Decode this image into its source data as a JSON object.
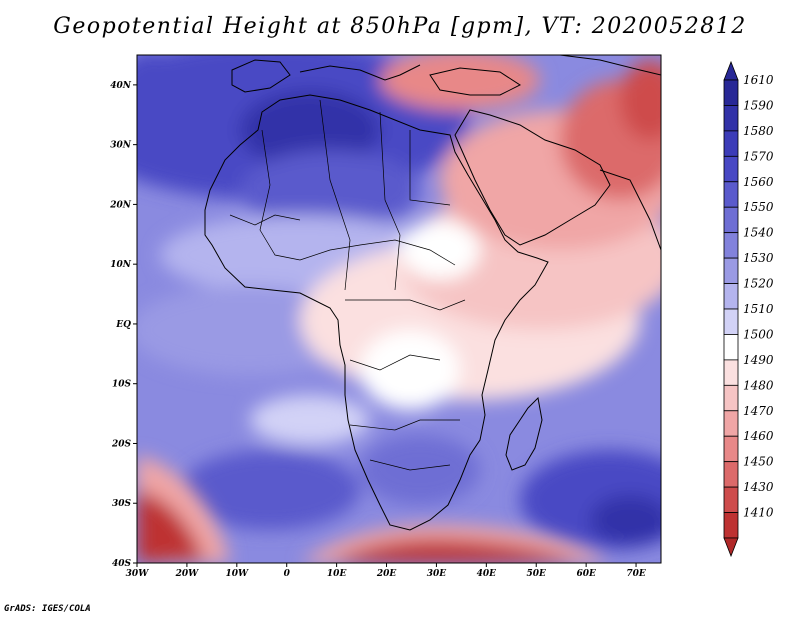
{
  "title": "Geopotential Height at 850hPa [gpm], VT: 2020052812",
  "footer": "GrADS: IGES/COLA",
  "map": {
    "lon_range": [
      -30,
      75
    ],
    "lat_range": [
      -40,
      45
    ],
    "lon_ticks": [
      {
        "value": -30,
        "label": "30W"
      },
      {
        "value": -20,
        "label": "20W"
      },
      {
        "value": -10,
        "label": "10W"
      },
      {
        "value": 0,
        "label": "0"
      },
      {
        "value": 10,
        "label": "10E"
      },
      {
        "value": 20,
        "label": "20E"
      },
      {
        "value": 30,
        "label": "30E"
      },
      {
        "value": 40,
        "label": "40E"
      },
      {
        "value": 50,
        "label": "50E"
      },
      {
        "value": 60,
        "label": "60E"
      },
      {
        "value": 70,
        "label": "70E"
      }
    ],
    "lat_ticks": [
      {
        "value": 40,
        "label": "40N"
      },
      {
        "value": 30,
        "label": "30N"
      },
      {
        "value": 20,
        "label": "20N"
      },
      {
        "value": 10,
        "label": "10N"
      },
      {
        "value": 0,
        "label": "EQ"
      },
      {
        "value": -10,
        "label": "10S"
      },
      {
        "value": -20,
        "label": "20S"
      },
      {
        "value": -30,
        "label": "30S"
      },
      {
        "value": -40,
        "label": "40S"
      }
    ]
  },
  "colorbar": {
    "levels": [
      {
        "label": "1610",
        "color": "#282896"
      },
      {
        "label": "1590",
        "color": "#3232a8"
      },
      {
        "label": "1580",
        "color": "#3c3cb8"
      },
      {
        "label": "1570",
        "color": "#4848c4"
      },
      {
        "label": "1560",
        "color": "#5a5acc"
      },
      {
        "label": "1550",
        "color": "#6e6ed4"
      },
      {
        "label": "1540",
        "color": "#8282dc"
      },
      {
        "label": "1530",
        "color": "#9a9ae4"
      },
      {
        "label": "1520",
        "color": "#b4b4ee"
      },
      {
        "label": "1510",
        "color": "#d2d2f6"
      },
      {
        "label": "1500",
        "color": "#ffffff"
      },
      {
        "label": "1490",
        "color": "#fbe0e0"
      },
      {
        "label": "1480",
        "color": "#f6c4c4"
      },
      {
        "label": "1470",
        "color": "#f0a6a6"
      },
      {
        "label": "1460",
        "color": "#e88888"
      },
      {
        "label": "1450",
        "color": "#dc6a6a"
      },
      {
        "label": "1430",
        "color": "#ce4c4c"
      },
      {
        "label": "1410",
        "color": "#be3232"
      }
    ],
    "bottom_color": "#b02828"
  }
}
